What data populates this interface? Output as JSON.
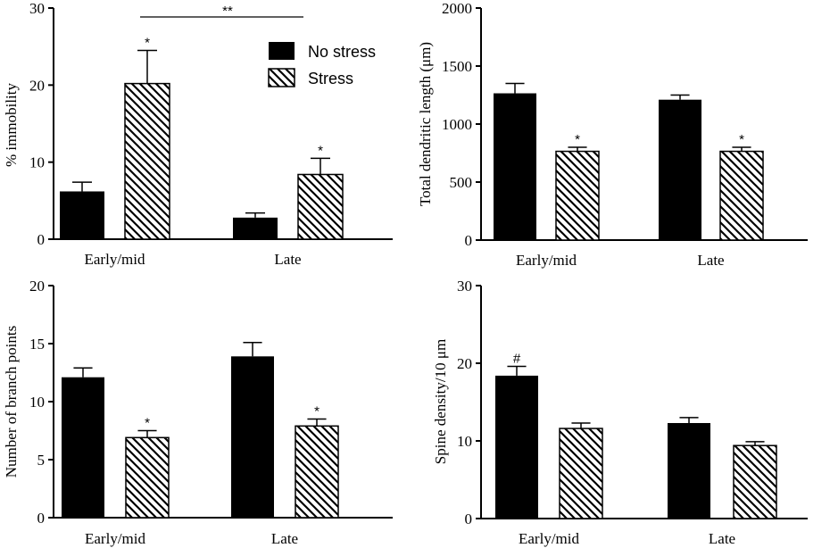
{
  "chart_data": [
    {
      "type": "bar",
      "panel": "top-left",
      "categories": [
        "Early/mid",
        "Late"
      ],
      "ylabel": "% immobility",
      "xlabel": "",
      "ylim": [
        0,
        30
      ],
      "yticks": [
        0,
        10,
        20,
        30
      ],
      "series": [
        {
          "name": "No stress",
          "values": [
            6.2,
            2.8
          ],
          "errors": [
            1.2,
            0.6
          ],
          "annotations": [
            "",
            ""
          ]
        },
        {
          "name": "Stress",
          "values": [
            20.2,
            8.4
          ],
          "errors": [
            4.3,
            2.1
          ],
          "annotations": [
            "*",
            "*"
          ]
        }
      ],
      "bracket": {
        "label": "**"
      },
      "legend": {
        "placement": "top-right",
        "entries": [
          "No stress",
          "Stress"
        ]
      }
    },
    {
      "type": "bar",
      "panel": "top-right",
      "categories": [
        "Early/mid",
        "Late"
      ],
      "ylabel": "Total dendritic length (μm)",
      "xlabel": "",
      "ylim": [
        0,
        2000
      ],
      "yticks": [
        0,
        500,
        1000,
        1500,
        2000
      ],
      "series": [
        {
          "name": "No stress",
          "values": [
            1265,
            1210
          ],
          "errors": [
            85,
            40
          ],
          "annotations": [
            "",
            ""
          ]
        },
        {
          "name": "Stress",
          "values": [
            765,
            765
          ],
          "errors": [
            35,
            35
          ],
          "annotations": [
            "*",
            "*"
          ]
        }
      ]
    },
    {
      "type": "bar",
      "panel": "bottom-left",
      "categories": [
        "Early/mid",
        "Late"
      ],
      "ylabel": "Number of branch points",
      "xlabel": "",
      "ylim": [
        0,
        20
      ],
      "yticks": [
        0,
        5,
        10,
        15,
        20
      ],
      "series": [
        {
          "name": "No stress",
          "values": [
            12.1,
            13.9
          ],
          "errors": [
            0.8,
            1.2
          ],
          "annotations": [
            "",
            ""
          ]
        },
        {
          "name": "Stress",
          "values": [
            6.9,
            7.9
          ],
          "errors": [
            0.6,
            0.6
          ],
          "annotations": [
            "*",
            "*"
          ]
        }
      ]
    },
    {
      "type": "bar",
      "panel": "bottom-right",
      "categories": [
        "Early/mid",
        "Late"
      ],
      "ylabel": "Spine density/10 μm",
      "xlabel": "",
      "ylim": [
        0,
        30
      ],
      "yticks": [
        0,
        10,
        20,
        30
      ],
      "series": [
        {
          "name": "No stress",
          "values": [
            18.4,
            12.3
          ],
          "errors": [
            1.2,
            0.7
          ],
          "annotations": [
            "#",
            ""
          ]
        },
        {
          "name": "Stress",
          "values": [
            11.6,
            9.4
          ],
          "errors": [
            0.7,
            0.5
          ],
          "annotations": [
            "",
            ""
          ]
        }
      ]
    }
  ]
}
